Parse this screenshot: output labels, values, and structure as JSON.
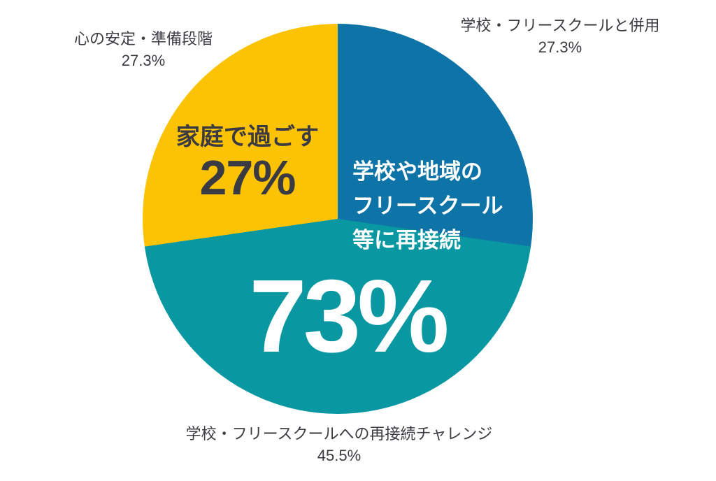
{
  "chart_data": {
    "type": "pie",
    "title": "",
    "legend_position": "none",
    "start_angle_deg": 0,
    "direction": "clockwise",
    "slices": [
      {
        "label": "学校・フリースクールと併用",
        "pct_label": "27.3%",
        "value": 27.3,
        "color": "#0E73A6"
      },
      {
        "label": "学校・フリースクールへの再接続チャレンジ",
        "pct_label": "45.5%",
        "value": 45.5,
        "color": "#0997A1"
      },
      {
        "label": "心の安定・準備段階",
        "pct_label": "27.3%",
        "value": 27.3,
        "color": "#FCC204"
      }
    ],
    "annotations": {
      "home": {
        "line1": "家庭で過ごす",
        "big_pct": "27%"
      },
      "reconnect": {
        "line1": "学校や地域の",
        "line2": "フリースクール",
        "line3": "等に再接続",
        "big_pct": "73%"
      }
    }
  },
  "colors": {
    "background": "#FFFFFF",
    "label_text": "#3C3C42",
    "inner_dark_text": "#3A3A43",
    "inner_white_text": "#FFFFFF"
  }
}
